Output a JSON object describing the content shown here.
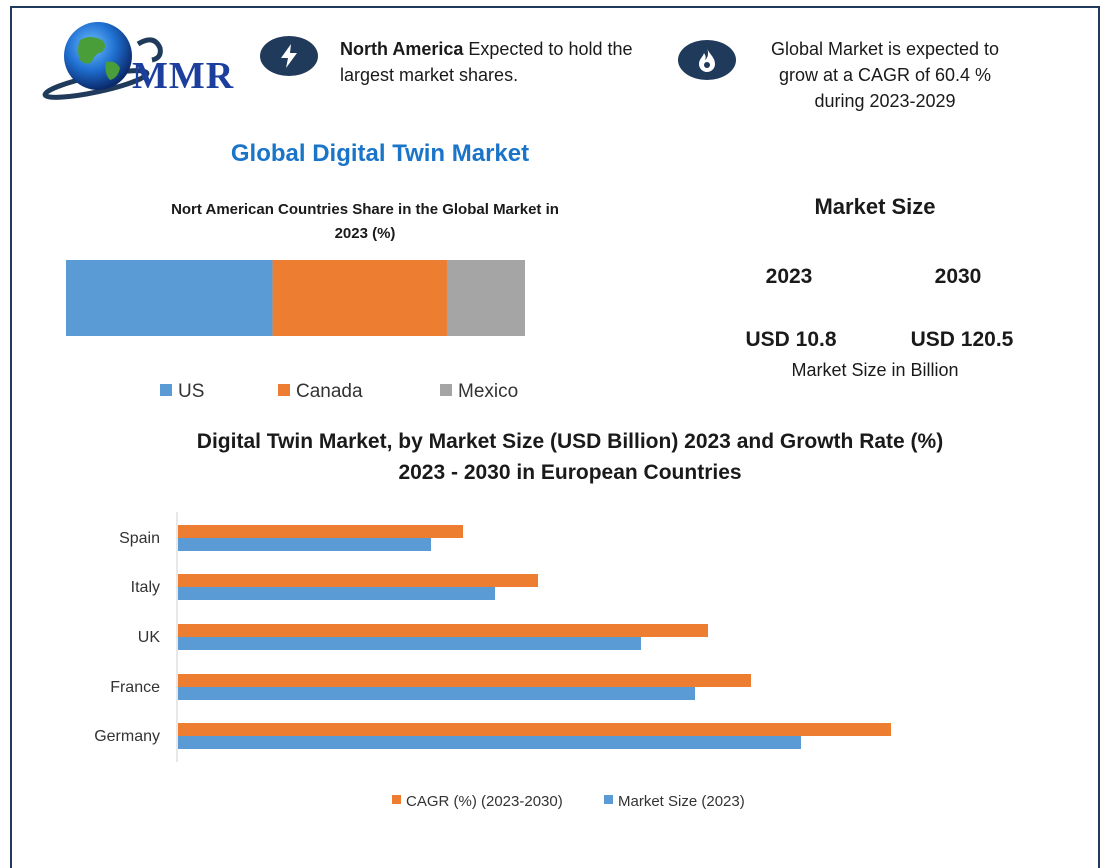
{
  "header": {
    "logo_text": "MMR",
    "info_left": {
      "bold": "North America",
      "text_line1": " Expected to hold the",
      "text_line2": "largest market shares."
    },
    "info_right": {
      "line1": "Global Market is expected to",
      "line2": "grow at a CAGR of 60.4 %",
      "line3": "during 2023-2029"
    },
    "icons": [
      "lightning-icon",
      "flame-icon"
    ]
  },
  "main_title": "Global Digital Twin Market",
  "market_size": {
    "title": "Market Size",
    "years": [
      "2023",
      "2030"
    ],
    "values": [
      "USD 10.8",
      "USD 120.5"
    ],
    "unit": "Market Size in Billion"
  },
  "colors": {
    "accent_blue": "#5b9bd5",
    "accent_orange": "#ed7d31",
    "mexico_gray": "#a5a5a5",
    "title_blue": "#1a75c9",
    "dark_navy": "#1f3a5a"
  },
  "chart_data": [
    {
      "type": "bar",
      "orientation": "horizontal-stacked-100",
      "title_line1": "Nort American Countries Share in the Global Market in",
      "title_line2": "2023  (%)",
      "series": [
        {
          "name": "US",
          "values": [
            45
          ]
        },
        {
          "name": "Canada",
          "values": [
            38
          ]
        },
        {
          "name": "Mexico",
          "values": [
            17
          ]
        }
      ],
      "legend": "bottom"
    },
    {
      "type": "bar",
      "orientation": "horizontal",
      "title_line1": "Digital Twin Market, by Market Size (USD Billion) 2023 and Growth Rate (%)",
      "title_line2": "2023 - 2030 in European Countries",
      "categories": [
        "Spain",
        "Italy",
        "UK",
        "France",
        "Germany"
      ],
      "series": [
        {
          "name": "CAGR (%) (2023-2030)",
          "values": [
            28.5,
            36,
            53,
            57.3,
            71.3
          ]
        },
        {
          "name": "Market Size (2023)",
          "values": [
            25.3,
            31.7,
            46.3,
            51.7,
            62.3
          ]
        }
      ],
      "xlim": [
        0,
        100
      ],
      "grid": false,
      "legend": "bottom"
    }
  ]
}
